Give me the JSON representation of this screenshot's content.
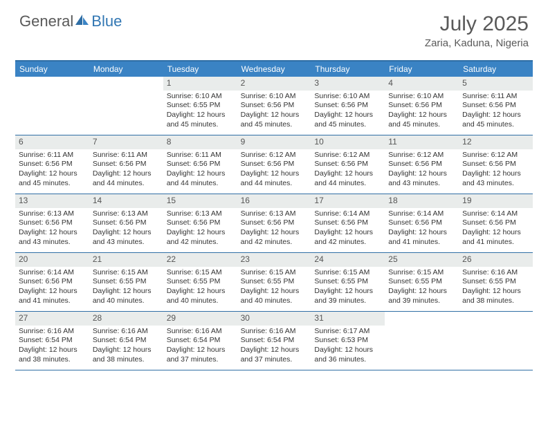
{
  "brand": {
    "part1": "General",
    "part2": "Blue"
  },
  "title": "July 2025",
  "location": "Zaria, Kaduna, Nigeria",
  "theme": {
    "header_bg": "#3a83c4",
    "border": "#2f6ea5",
    "daynum_bg": "#e9eceb",
    "text_gray": "#595959"
  },
  "days_of_week": [
    "Sunday",
    "Monday",
    "Tuesday",
    "Wednesday",
    "Thursday",
    "Friday",
    "Saturday"
  ],
  "weeks": [
    [
      null,
      null,
      {
        "n": "1",
        "sr": "6:10 AM",
        "ss": "6:55 PM",
        "dh": "12",
        "dm": "45"
      },
      {
        "n": "2",
        "sr": "6:10 AM",
        "ss": "6:56 PM",
        "dh": "12",
        "dm": "45"
      },
      {
        "n": "3",
        "sr": "6:10 AM",
        "ss": "6:56 PM",
        "dh": "12",
        "dm": "45"
      },
      {
        "n": "4",
        "sr": "6:10 AM",
        "ss": "6:56 PM",
        "dh": "12",
        "dm": "45"
      },
      {
        "n": "5",
        "sr": "6:11 AM",
        "ss": "6:56 PM",
        "dh": "12",
        "dm": "45"
      }
    ],
    [
      {
        "n": "6",
        "sr": "6:11 AM",
        "ss": "6:56 PM",
        "dh": "12",
        "dm": "45"
      },
      {
        "n": "7",
        "sr": "6:11 AM",
        "ss": "6:56 PM",
        "dh": "12",
        "dm": "44"
      },
      {
        "n": "8",
        "sr": "6:11 AM",
        "ss": "6:56 PM",
        "dh": "12",
        "dm": "44"
      },
      {
        "n": "9",
        "sr": "6:12 AM",
        "ss": "6:56 PM",
        "dh": "12",
        "dm": "44"
      },
      {
        "n": "10",
        "sr": "6:12 AM",
        "ss": "6:56 PM",
        "dh": "12",
        "dm": "44"
      },
      {
        "n": "11",
        "sr": "6:12 AM",
        "ss": "6:56 PM",
        "dh": "12",
        "dm": "43"
      },
      {
        "n": "12",
        "sr": "6:12 AM",
        "ss": "6:56 PM",
        "dh": "12",
        "dm": "43"
      }
    ],
    [
      {
        "n": "13",
        "sr": "6:13 AM",
        "ss": "6:56 PM",
        "dh": "12",
        "dm": "43"
      },
      {
        "n": "14",
        "sr": "6:13 AM",
        "ss": "6:56 PM",
        "dh": "12",
        "dm": "43"
      },
      {
        "n": "15",
        "sr": "6:13 AM",
        "ss": "6:56 PM",
        "dh": "12",
        "dm": "42"
      },
      {
        "n": "16",
        "sr": "6:13 AM",
        "ss": "6:56 PM",
        "dh": "12",
        "dm": "42"
      },
      {
        "n": "17",
        "sr": "6:14 AM",
        "ss": "6:56 PM",
        "dh": "12",
        "dm": "42"
      },
      {
        "n": "18",
        "sr": "6:14 AM",
        "ss": "6:56 PM",
        "dh": "12",
        "dm": "41"
      },
      {
        "n": "19",
        "sr": "6:14 AM",
        "ss": "6:56 PM",
        "dh": "12",
        "dm": "41"
      }
    ],
    [
      {
        "n": "20",
        "sr": "6:14 AM",
        "ss": "6:56 PM",
        "dh": "12",
        "dm": "41"
      },
      {
        "n": "21",
        "sr": "6:15 AM",
        "ss": "6:55 PM",
        "dh": "12",
        "dm": "40"
      },
      {
        "n": "22",
        "sr": "6:15 AM",
        "ss": "6:55 PM",
        "dh": "12",
        "dm": "40"
      },
      {
        "n": "23",
        "sr": "6:15 AM",
        "ss": "6:55 PM",
        "dh": "12",
        "dm": "40"
      },
      {
        "n": "24",
        "sr": "6:15 AM",
        "ss": "6:55 PM",
        "dh": "12",
        "dm": "39"
      },
      {
        "n": "25",
        "sr": "6:15 AM",
        "ss": "6:55 PM",
        "dh": "12",
        "dm": "39"
      },
      {
        "n": "26",
        "sr": "6:16 AM",
        "ss": "6:55 PM",
        "dh": "12",
        "dm": "38"
      }
    ],
    [
      {
        "n": "27",
        "sr": "6:16 AM",
        "ss": "6:54 PM",
        "dh": "12",
        "dm": "38"
      },
      {
        "n": "28",
        "sr": "6:16 AM",
        "ss": "6:54 PM",
        "dh": "12",
        "dm": "38"
      },
      {
        "n": "29",
        "sr": "6:16 AM",
        "ss": "6:54 PM",
        "dh": "12",
        "dm": "37"
      },
      {
        "n": "30",
        "sr": "6:16 AM",
        "ss": "6:54 PM",
        "dh": "12",
        "dm": "37"
      },
      {
        "n": "31",
        "sr": "6:17 AM",
        "ss": "6:53 PM",
        "dh": "12",
        "dm": "36"
      },
      null,
      null
    ]
  ],
  "labels": {
    "sunrise": "Sunrise:",
    "sunset": "Sunset:",
    "daylight": "Daylight:",
    "hours": "hours",
    "and": "and",
    "minutes": "minutes."
  }
}
